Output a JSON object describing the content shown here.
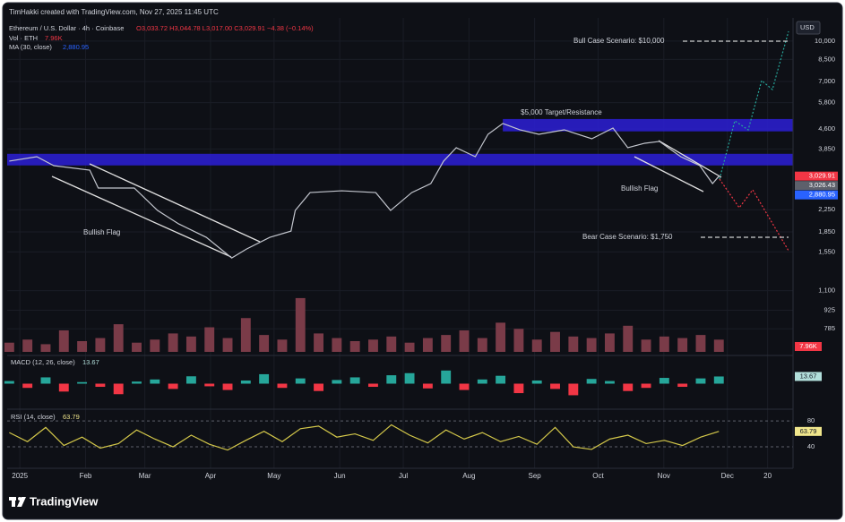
{
  "header": {
    "credit": "TimHakki created with TradingView.com, Nov 27, 2025 11:45 UTC",
    "symbol": "Ethereum / U.S. Dollar · 4h · Coinbase",
    "ohlc": "O3,033.72 H3,044.78 L3,017.00 C3,029.91 −4.38 (−0.14%)",
    "volume_legend": "Vol · ETH",
    "volume_legend_value": "7.96K",
    "ma_legend": "MA (30, close)",
    "ma_legend_value": "2,880.95",
    "macd_legend": "MACD (12, 26, close)",
    "macd_legend_value": "13.67",
    "rsi_legend": "RSI (14, close)",
    "rsi_legend_value": "63.79",
    "currency": "USD",
    "footer": "TradingView"
  },
  "chart_data": [
    {
      "type": "line",
      "log_scale": true,
      "color": "#c3c6ce",
      "x": [
        -5,
        8,
        16,
        33,
        37,
        54,
        65,
        75,
        88,
        100,
        107,
        118,
        128,
        130,
        137,
        152,
        168,
        175,
        185,
        194,
        200,
        206,
        215,
        221,
        228,
        236,
        245,
        257,
        270,
        280,
        287,
        295,
        302,
        312,
        321,
        327,
        330
      ],
      "values": [
        3460,
        3597,
        3323,
        3194,
        2727,
        2727,
        2236,
        1985,
        1763,
        1469,
        1590,
        1763,
        1863,
        2236,
        2619,
        2661,
        2619,
        2236,
        2619,
        2836,
        3457,
        3894,
        3597,
        4385,
        4824,
        4563,
        4385,
        4563,
        4215,
        4636,
        3894,
        4052,
        4117,
        3597,
        3323,
        2836,
        3026.43
      ],
      "xlim": [
        -6,
        365
      ],
      "xticks": [
        {
          "value": 0,
          "label": "2025"
        },
        {
          "value": 31,
          "label": "Feb"
        },
        {
          "value": 59,
          "label": "Mar"
        },
        {
          "value": 90,
          "label": "Apr"
        },
        {
          "value": 120,
          "label": "May"
        },
        {
          "value": 151,
          "label": "Jun"
        },
        {
          "value": 181,
          "label": "Jul"
        },
        {
          "value": 212,
          "label": "Aug"
        },
        {
          "value": 243,
          "label": "Sep"
        },
        {
          "value": 273,
          "label": "Oct"
        },
        {
          "value": 304,
          "label": "Nov"
        },
        {
          "value": 334,
          "label": "Dec"
        },
        {
          "value": 353,
          "label": "20"
        }
      ],
      "ylim": [
        630,
        11800
      ],
      "yticks": [
        {
          "value": 10000,
          "label": "10,000"
        },
        {
          "value": 8500,
          "label": "8,500"
        },
        {
          "value": 7000,
          "label": "7,000"
        },
        {
          "value": 5800,
          "label": "5,800"
        },
        {
          "value": 4600,
          "label": "4,600"
        },
        {
          "value": 3850,
          "label": "3,850"
        },
        {
          "value": 2250,
          "label": "2,250"
        },
        {
          "value": 1850,
          "label": "1,850"
        },
        {
          "value": 1550,
          "label": "1,550"
        },
        {
          "value": 1100,
          "label": "1,100"
        },
        {
          "value": 925,
          "label": "925"
        },
        {
          "value": 785,
          "label": "785"
        }
      ],
      "zones": [
        {
          "range": [
            3330,
            3690
          ],
          "color": "#2b1fd6"
        },
        {
          "range": [
            4500,
            5020
          ],
          "from": 228,
          "color": "#2b1fd6",
          "label": "$5,000 Target/Resistance"
        }
      ],
      "price_badges": [
        {
          "value": 3029.91,
          "label": "3,029.91",
          "color": "#f23645"
        },
        {
          "value": 3026.43,
          "label": "3,026.43",
          "color": "#5d606b"
        },
        {
          "value": 2880.95,
          "label": "2,880.95",
          "color": "#2962ff"
        }
      ],
      "annotations": {
        "bull_case": "Bull Case Scenario: $10,000",
        "bear_case": "Bear Case Scenario: $1,750",
        "flag_1": "Bullish Flag",
        "flag_2": "Bullish Flag"
      }
    },
    {
      "type": "bar",
      "color": "#7a3b48",
      "values": [
        6,
        8,
        5,
        14,
        7,
        9,
        18,
        6,
        8,
        12,
        10,
        16,
        9,
        22,
        11,
        8,
        35,
        12,
        9,
        7,
        8,
        10,
        6,
        9,
        11,
        14,
        9,
        19,
        15,
        8,
        13,
        10,
        9,
        12,
        17,
        8,
        10,
        9,
        11,
        7.96
      ],
      "value_labels_last": {
        "value": 7.96,
        "label": "7.96K",
        "color": "#f23645"
      },
      "ylim": [
        0,
        60
      ]
    },
    {
      "type": "bar",
      "color": "#26a69a",
      "negative_color": "#f23645",
      "values": [
        5,
        -8,
        12,
        -15,
        3,
        -6,
        -20,
        4,
        8,
        -10,
        14,
        -5,
        -12,
        6,
        18,
        -8,
        10,
        -14,
        7,
        12,
        -6,
        16,
        20,
        -9,
        25,
        -12,
        8,
        15,
        -18,
        6,
        -10,
        -22,
        9,
        5,
        -14,
        -8,
        11,
        -6,
        10,
        13.67
      ],
      "value_labels_last": {
        "value": 13.67,
        "label": "13.67",
        "color": "#b2dfdb"
      },
      "ylim": [
        -40,
        40
      ]
    },
    {
      "type": "line",
      "color": "#d4c84a",
      "values": [
        62,
        48,
        70,
        42,
        55,
        38,
        45,
        66,
        52,
        40,
        58,
        44,
        35,
        50,
        64,
        48,
        68,
        72,
        55,
        60,
        50,
        74,
        58,
        46,
        66,
        52,
        62,
        48,
        56,
        44,
        70,
        40,
        36,
        52,
        58,
        45,
        50,
        42,
        55,
        63.79
      ],
      "value_labels_last": {
        "value": 63.79,
        "label": "63.79",
        "color": "#f0e68c"
      },
      "ylim": [
        11,
        94
      ],
      "yticks": [
        80,
        40
      ]
    }
  ]
}
